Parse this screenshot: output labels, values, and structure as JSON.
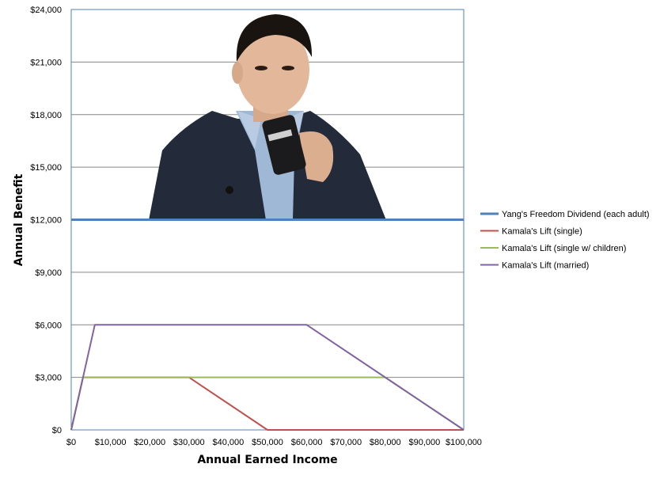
{
  "chart_data": {
    "type": "line",
    "title": "",
    "xlabel": "Annual Earned Income",
    "ylabel": "Annual Benefit",
    "xlim": [
      0,
      100000
    ],
    "ylim": [
      0,
      24000
    ],
    "x_ticks": [
      0,
      10000,
      20000,
      30000,
      40000,
      50000,
      60000,
      70000,
      80000,
      90000,
      100000
    ],
    "x_tick_labels": [
      "$0",
      "$10,000",
      "$20,000",
      "$30,000",
      "$40,000",
      "$50,000",
      "$60,000",
      "$70,000",
      "$80,000",
      "$90,000",
      "$100,000"
    ],
    "y_ticks": [
      0,
      3000,
      6000,
      9000,
      12000,
      15000,
      18000,
      21000,
      24000
    ],
    "y_tick_labels": [
      "$0",
      "$3,000",
      "$6,000",
      "$9,000",
      "$12,000",
      "$15,000",
      "$18,000",
      "$21,000",
      "$24,000"
    ],
    "grid": "horizontal",
    "legend_position": "right",
    "series": [
      {
        "name": "Yang's Freedom Dividend (each adult)",
        "color": "#4f81bd",
        "points": [
          [
            0,
            12000
          ],
          [
            100000,
            12000
          ]
        ]
      },
      {
        "name": "Kamala's Lift (single)",
        "color": "#c0504d",
        "points": [
          [
            0,
            0
          ],
          [
            3000,
            3000
          ],
          [
            30000,
            3000
          ],
          [
            50000,
            0
          ],
          [
            100000,
            0
          ]
        ]
      },
      {
        "name": "Kamala's Lift (single w/ children)",
        "color": "#9bbb59",
        "points": [
          [
            0,
            0
          ],
          [
            3000,
            3000
          ],
          [
            80000,
            3000
          ],
          [
            100000,
            0
          ]
        ]
      },
      {
        "name": "Kamala's Lift (married)",
        "color": "#8064a2",
        "points": [
          [
            0,
            0
          ],
          [
            6000,
            6000
          ],
          [
            60000,
            6000
          ],
          [
            100000,
            0
          ]
        ]
      }
    ],
    "overlay_image": "photo-of-man-drinking-from-mug"
  }
}
